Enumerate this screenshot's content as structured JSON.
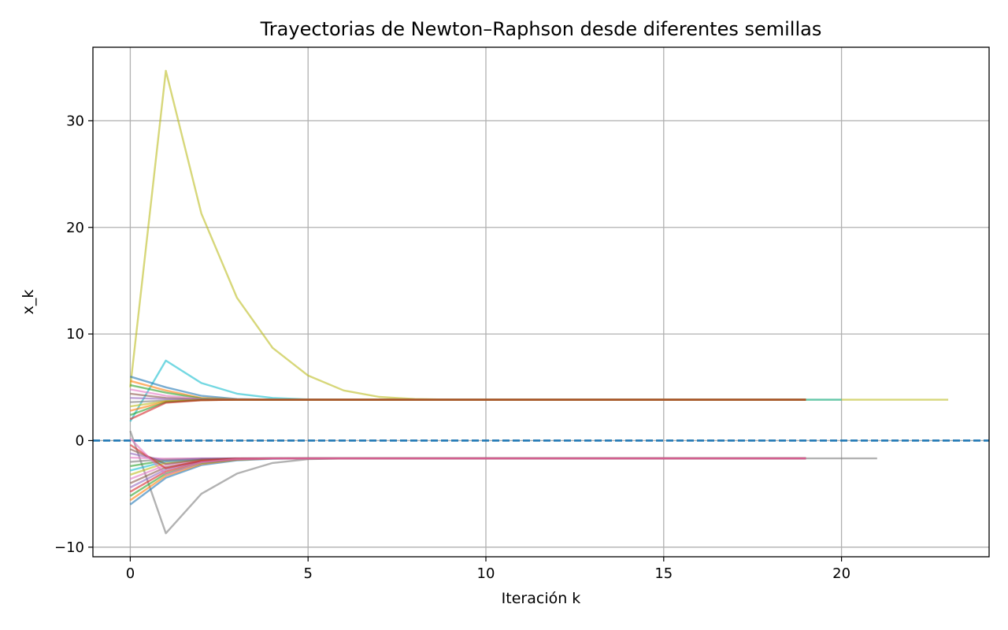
{
  "chart_data": {
    "type": "line",
    "title": "Trayectorias de Newton–Raphson desde diferentes semillas",
    "xlabel": "Iteración k",
    "ylabel": "x_k",
    "xlim": [
      -1.05,
      24.15
    ],
    "ylim": [
      -10.9,
      36.9
    ],
    "x_ticks": [
      0,
      5,
      10,
      15,
      20
    ],
    "y_ticks": [
      -10,
      0,
      10,
      20,
      30
    ],
    "x_tick_labels": [
      "0",
      "5",
      "10",
      "15",
      "20"
    ],
    "y_tick_labels": [
      "−10",
      "0",
      "10",
      "20",
      "30"
    ],
    "grid": true,
    "legend": "none",
    "reference_line": {
      "y": 0,
      "style": "dashed",
      "color": "#1f77b4"
    },
    "series": [
      {
        "color": "#bcbd22",
        "values": [
          5.0,
          34.7,
          21.3,
          13.4,
          8.7,
          6.1,
          4.7,
          4.1,
          3.9,
          3.85,
          3.83,
          3.83,
          3.83,
          3.83,
          3.83,
          3.83,
          3.83,
          3.83,
          3.83,
          3.83,
          3.83,
          3.83,
          3.83,
          3.83
        ]
      },
      {
        "color": "#17becf",
        "values": [
          1.8,
          7.5,
          5.4,
          4.4,
          4.0,
          3.86,
          3.83,
          3.83,
          3.83,
          3.83,
          3.83,
          3.83,
          3.83,
          3.83,
          3.83,
          3.83,
          3.83,
          3.83,
          3.83,
          3.83,
          3.83
        ]
      },
      {
        "color": "#1f77b4",
        "values": [
          6.0,
          5.0,
          4.2,
          3.9,
          3.84,
          3.83,
          3.83,
          3.83,
          3.83,
          3.83,
          3.83,
          3.83,
          3.83,
          3.83,
          3.83,
          3.83,
          3.83,
          3.83,
          3.83,
          3.83
        ]
      },
      {
        "color": "#ff7f0e",
        "values": [
          5.6,
          4.7,
          4.0,
          3.86,
          3.83,
          3.83,
          3.83,
          3.83,
          3.83,
          3.83,
          3.83,
          3.83,
          3.83,
          3.83,
          3.83,
          3.83,
          3.83,
          3.83,
          3.83,
          3.83
        ]
      },
      {
        "color": "#2ca02c",
        "values": [
          5.2,
          4.5,
          3.95,
          3.85,
          3.83,
          3.83,
          3.83,
          3.83,
          3.83,
          3.83,
          3.83,
          3.83,
          3.83,
          3.83,
          3.83,
          3.83,
          3.83,
          3.83,
          3.83,
          3.83
        ]
      },
      {
        "color": "#e377c2",
        "values": [
          4.8,
          4.2,
          3.9,
          3.84,
          3.83,
          3.83,
          3.83,
          3.83,
          3.83,
          3.83,
          3.83,
          3.83,
          3.83,
          3.83,
          3.83,
          3.83,
          3.83,
          3.83,
          3.83,
          3.83
        ]
      },
      {
        "color": "#8c564b",
        "values": [
          4.4,
          4.0,
          3.86,
          3.83,
          3.83,
          3.83,
          3.83,
          3.83,
          3.83,
          3.83,
          3.83,
          3.83,
          3.83,
          3.83,
          3.83,
          3.83,
          3.83,
          3.83,
          3.83,
          3.83
        ]
      },
      {
        "color": "#9467bd",
        "values": [
          4.0,
          3.9,
          3.84,
          3.83,
          3.83,
          3.83,
          3.83,
          3.83,
          3.83,
          3.83,
          3.83,
          3.83,
          3.83,
          3.83,
          3.83,
          3.83,
          3.83,
          3.83,
          3.83,
          3.83
        ]
      },
      {
        "color": "#7f7f7f",
        "values": [
          3.6,
          3.75,
          3.82,
          3.83,
          3.83,
          3.83,
          3.83,
          3.83,
          3.83,
          3.83,
          3.83,
          3.83,
          3.83,
          3.83,
          3.83,
          3.83,
          3.83,
          3.83,
          3.83,
          3.83
        ]
      },
      {
        "color": "#bcbd22",
        "values": [
          3.2,
          3.7,
          3.81,
          3.83,
          3.83,
          3.83,
          3.83,
          3.83,
          3.83,
          3.83,
          3.83,
          3.83,
          3.83,
          3.83,
          3.83,
          3.83,
          3.83,
          3.83,
          3.83,
          3.83
        ]
      },
      {
        "color": "#ff7f0e",
        "values": [
          2.8,
          3.65,
          3.8,
          3.83,
          3.83,
          3.83,
          3.83,
          3.83,
          3.83,
          3.83,
          3.83,
          3.83,
          3.83,
          3.83,
          3.83,
          3.83,
          3.83,
          3.83,
          3.83,
          3.83
        ]
      },
      {
        "color": "#2ca02c",
        "values": [
          2.4,
          3.6,
          3.8,
          3.83,
          3.83,
          3.83,
          3.83,
          3.83,
          3.83,
          3.83,
          3.83,
          3.83,
          3.83,
          3.83,
          3.83,
          3.83,
          3.83,
          3.83,
          3.83,
          3.83
        ]
      },
      {
        "color": "#d62728",
        "values": [
          2.0,
          3.55,
          3.79,
          3.83,
          3.83,
          3.83,
          3.83,
          3.83,
          3.83,
          3.83,
          3.83,
          3.83,
          3.83,
          3.83,
          3.83,
          3.83,
          3.83,
          3.83,
          3.83,
          3.83
        ]
      },
      {
        "color": "#7f7f7f",
        "values": [
          0.9,
          -8.7,
          -5.0,
          -3.1,
          -2.1,
          -1.75,
          -1.68,
          -1.67,
          -1.67,
          -1.67,
          -1.67,
          -1.67,
          -1.67,
          -1.67,
          -1.67,
          -1.67,
          -1.67,
          -1.67,
          -1.67,
          -1.67,
          -1.67,
          -1.67
        ]
      },
      {
        "color": "#1f77b4",
        "values": [
          -6.0,
          -3.5,
          -2.3,
          -1.85,
          -1.7,
          -1.67,
          -1.67,
          -1.67,
          -1.67,
          -1.67,
          -1.67,
          -1.67,
          -1.67,
          -1.67,
          -1.67,
          -1.67,
          -1.67,
          -1.67,
          -1.67,
          -1.67
        ]
      },
      {
        "color": "#ff7f0e",
        "values": [
          -5.6,
          -3.3,
          -2.2,
          -1.8,
          -1.69,
          -1.67,
          -1.67,
          -1.67,
          -1.67,
          -1.67,
          -1.67,
          -1.67,
          -1.67,
          -1.67,
          -1.67,
          -1.67,
          -1.67,
          -1.67,
          -1.67,
          -1.67
        ]
      },
      {
        "color": "#2ca02c",
        "values": [
          -5.2,
          -3.1,
          -2.1,
          -1.76,
          -1.68,
          -1.67,
          -1.67,
          -1.67,
          -1.67,
          -1.67,
          -1.67,
          -1.67,
          -1.67,
          -1.67,
          -1.67,
          -1.67,
          -1.67,
          -1.67,
          -1.67,
          -1.67
        ]
      },
      {
        "color": "#d62728",
        "values": [
          -4.8,
          -2.9,
          -2.0,
          -1.74,
          -1.68,
          -1.67,
          -1.67,
          -1.67,
          -1.67,
          -1.67,
          -1.67,
          -1.67,
          -1.67,
          -1.67,
          -1.67,
          -1.67,
          -1.67,
          -1.67,
          -1.67,
          -1.67
        ]
      },
      {
        "color": "#9467bd",
        "values": [
          -4.4,
          -2.7,
          -1.95,
          -1.72,
          -1.68,
          -1.67,
          -1.67,
          -1.67,
          -1.67,
          -1.67,
          -1.67,
          -1.67,
          -1.67,
          -1.67,
          -1.67,
          -1.67,
          -1.67,
          -1.67,
          -1.67,
          -1.67
        ]
      },
      {
        "color": "#8c564b",
        "values": [
          -4.0,
          -2.5,
          -1.9,
          -1.7,
          -1.67,
          -1.67,
          -1.67,
          -1.67,
          -1.67,
          -1.67,
          -1.67,
          -1.67,
          -1.67,
          -1.67,
          -1.67,
          -1.67,
          -1.67,
          -1.67,
          -1.67,
          -1.67
        ]
      },
      {
        "color": "#e377c2",
        "values": [
          -3.6,
          -2.3,
          -1.85,
          -1.7,
          -1.67,
          -1.67,
          -1.67,
          -1.67,
          -1.67,
          -1.67,
          -1.67,
          -1.67,
          -1.67,
          -1.67,
          -1.67,
          -1.67,
          -1.67,
          -1.67,
          -1.67,
          -1.67
        ]
      },
      {
        "color": "#bcbd22",
        "values": [
          -3.2,
          -2.1,
          -1.8,
          -1.69,
          -1.67,
          -1.67,
          -1.67,
          -1.67,
          -1.67,
          -1.67,
          -1.67,
          -1.67,
          -1.67,
          -1.67,
          -1.67,
          -1.67,
          -1.67,
          -1.67,
          -1.67,
          -1.67
        ]
      },
      {
        "color": "#17becf",
        "values": [
          -2.8,
          -1.95,
          -1.75,
          -1.68,
          -1.67,
          -1.67,
          -1.67,
          -1.67,
          -1.67,
          -1.67,
          -1.67,
          -1.67,
          -1.67,
          -1.67,
          -1.67,
          -1.67,
          -1.67,
          -1.67,
          -1.67,
          -1.67
        ]
      },
      {
        "color": "#2ca02c",
        "values": [
          -2.4,
          -1.85,
          -1.72,
          -1.68,
          -1.67,
          -1.67,
          -1.67,
          -1.67,
          -1.67,
          -1.67,
          -1.67,
          -1.67,
          -1.67,
          -1.67,
          -1.67,
          -1.67,
          -1.67,
          -1.67,
          -1.67,
          -1.67
        ]
      },
      {
        "color": "#7f7f7f",
        "values": [
          -2.0,
          -1.75,
          -1.69,
          -1.67,
          -1.67,
          -1.67,
          -1.67,
          -1.67,
          -1.67,
          -1.67,
          -1.67,
          -1.67,
          -1.67,
          -1.67,
          -1.67,
          -1.67,
          -1.67,
          -1.67,
          -1.67,
          -1.67
        ]
      },
      {
        "color": "#e377c2",
        "values": [
          -1.6,
          -1.7,
          -1.67,
          -1.67,
          -1.67,
          -1.67,
          -1.67,
          -1.67,
          -1.67,
          -1.67,
          -1.67,
          -1.67,
          -1.67,
          -1.67,
          -1.67,
          -1.67,
          -1.67,
          -1.67,
          -1.67,
          -1.67
        ]
      },
      {
        "color": "#9467bd",
        "values": [
          -1.2,
          -1.9,
          -1.7,
          -1.67,
          -1.67,
          -1.67,
          -1.67,
          -1.67,
          -1.67,
          -1.67,
          -1.67,
          -1.67,
          -1.67,
          -1.67,
          -1.67,
          -1.67,
          -1.67,
          -1.67,
          -1.67,
          -1.67
        ]
      },
      {
        "color": "#8c564b",
        "values": [
          -0.8,
          -2.2,
          -1.78,
          -1.68,
          -1.67,
          -1.67,
          -1.67,
          -1.67,
          -1.67,
          -1.67,
          -1.67,
          -1.67,
          -1.67,
          -1.67,
          -1.67,
          -1.67,
          -1.67,
          -1.67,
          -1.67,
          -1.67
        ]
      },
      {
        "color": "#d62728",
        "values": [
          -0.4,
          -2.6,
          -1.88,
          -1.7,
          -1.67,
          -1.67,
          -1.67,
          -1.67,
          -1.67,
          -1.67,
          -1.67,
          -1.67,
          -1.67,
          -1.67,
          -1.67,
          -1.67,
          -1.67,
          -1.67,
          -1.67,
          -1.67
        ]
      },
      {
        "color": "#e377c2",
        "values": [
          0.2,
          -3.2,
          -2.05,
          -1.74,
          -1.68,
          -1.67,
          -1.67,
          -1.67,
          -1.67,
          -1.67,
          -1.67,
          -1.67,
          -1.67,
          -1.67,
          -1.67,
          -1.67,
          -1.67,
          -1.67,
          -1.67,
          -1.67
        ]
      }
    ]
  }
}
